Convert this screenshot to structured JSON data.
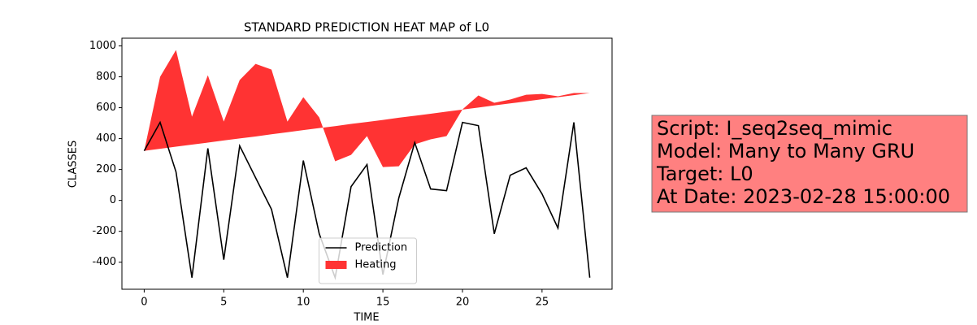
{
  "chart_data": {
    "type": "line_fill",
    "title": "STANDARD PREDICTION HEAT MAP of L0",
    "xlabel": "TIME",
    "ylabel": "CLASSES",
    "x": [
      0,
      1,
      2,
      3,
      4,
      5,
      6,
      7,
      8,
      9,
      10,
      11,
      12,
      13,
      14,
      15,
      16,
      17,
      18,
      19,
      20,
      21,
      22,
      23,
      24,
      25,
      26,
      27,
      28
    ],
    "series": [
      {
        "name": "Prediction",
        "color": "#000000",
        "kind": "line",
        "values": [
          321,
          505,
          184,
          -500,
          337,
          -384,
          353,
          147,
          -58,
          -500,
          258,
          -216,
          -500,
          89,
          232,
          -480,
          16,
          374,
          74,
          63,
          505,
          484,
          -216,
          163,
          211,
          42,
          -179,
          505,
          -500
        ]
      },
      {
        "name": "Heating",
        "color": "#ff3333",
        "kind": "fill",
        "values": [
          321,
          800,
          974,
          542,
          810,
          510,
          779,
          884,
          847,
          510,
          668,
          537,
          253,
          295,
          416,
          216,
          221,
          363,
          395,
          416,
          589,
          679,
          632,
          653,
          684,
          689,
          674,
          695,
          695
        ],
        "base": [
          321,
          334,
          348,
          361,
          374,
          388,
          401,
          414,
          428,
          441,
          455,
          468,
          481,
          495,
          508,
          521,
          535,
          548,
          561,
          575,
          588,
          601,
          615,
          628,
          641,
          655,
          668,
          681,
          695
        ]
      }
    ],
    "xlim": [
      -1.4,
      29.4
    ],
    "xticks": [
      0,
      5,
      10,
      15,
      20,
      25
    ],
    "ylim": [
      -575,
      1050
    ],
    "yticks": [
      -400,
      -200,
      0,
      200,
      400,
      600,
      800,
      1000
    ],
    "legend": "lower center",
    "annotation": [
      "Script: I_seq2seq_mimic",
      "Model: Many to Many GRU",
      "Target: L0",
      "At Date: 2023-02-28 15:00:00"
    ],
    "annotation_color": "#ff8080"
  }
}
